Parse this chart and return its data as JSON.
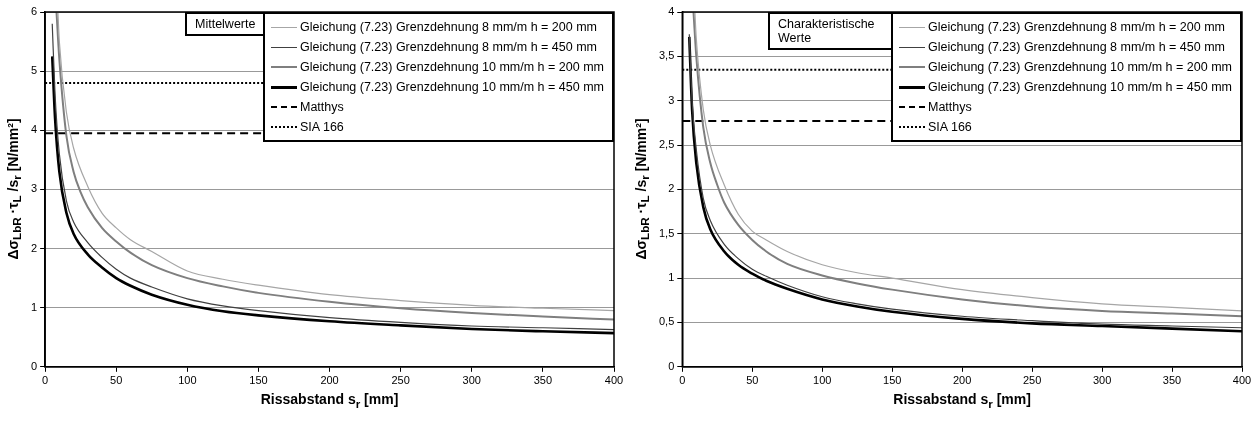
{
  "chart_data": [
    {
      "type": "line",
      "xlabel": "Rissabstand s$_{r}$ [mm]",
      "ylabel": "Δσ$_{LbR}$ ·τ$_{L}$ /s$_{r}$ [N/mm²]",
      "annotations": [
        "Mittelwerte"
      ],
      "xlim": [
        0,
        400
      ],
      "xticks": [
        0,
        50,
        100,
        150,
        200,
        250,
        300,
        350,
        400
      ],
      "ylim": [
        0,
        6
      ],
      "yticks": [
        0,
        1,
        2,
        3,
        4,
        5,
        6
      ],
      "grid": "y",
      "legend": "top right",
      "marker": "none",
      "line_style": "solid",
      "series": [
        {
          "name": "Gleichung (7.23) Grenzdehnung 8 mm/m h = 200 mm",
          "color": "#a6a6a6",
          "x": [
            9,
            10,
            15,
            20,
            30,
            40,
            50,
            60,
            75,
            100,
            125,
            150,
            200,
            250,
            300,
            350,
            400
          ],
          "values": [
            6.0,
            5.5,
            4.3,
            3.7,
            3.05,
            2.6,
            2.35,
            2.15,
            1.95,
            1.62,
            1.48,
            1.38,
            1.22,
            1.12,
            1.04,
            0.99,
            0.95
          ]
        },
        {
          "name": "Gleichung (7.23) Grenzdehnung 8 mm/m h = 450 mm",
          "color": "#404040",
          "x": [
            5,
            7,
            10,
            15,
            20,
            30,
            40,
            50,
            60,
            75,
            100,
            125,
            150,
            200,
            250,
            300,
            350,
            400
          ],
          "values": [
            5.8,
            4.6,
            3.6,
            2.8,
            2.45,
            2.1,
            1.85,
            1.65,
            1.5,
            1.35,
            1.15,
            1.03,
            0.95,
            0.83,
            0.75,
            0.69,
            0.66,
            0.63
          ]
        },
        {
          "name": "Gleichung (7.23) Grenzdehnung 10 mm/m h = 200 mm",
          "color": "#7f7f7f",
          "x": [
            8,
            10,
            15,
            20,
            25,
            30,
            40,
            50,
            60,
            75,
            100,
            125,
            150,
            200,
            250,
            300,
            350,
            400
          ],
          "values": [
            6.0,
            5.2,
            3.9,
            3.3,
            2.95,
            2.7,
            2.35,
            2.12,
            1.93,
            1.72,
            1.5,
            1.36,
            1.25,
            1.1,
            0.99,
            0.91,
            0.85,
            0.8
          ]
        },
        {
          "name": "Gleichung (7.23) Grenzdehnung 10 mm/m h = 450 mm",
          "color": "#000000",
          "x": [
            5,
            7,
            10,
            15,
            20,
            30,
            40,
            50,
            60,
            75,
            100,
            125,
            150,
            200,
            250,
            300,
            350,
            400
          ],
          "values": [
            5.25,
            4.2,
            3.3,
            2.6,
            2.25,
            1.9,
            1.68,
            1.5,
            1.37,
            1.22,
            1.05,
            0.94,
            0.87,
            0.77,
            0.7,
            0.64,
            0.6,
            0.57
          ]
        }
      ],
      "ref_lines": [
        {
          "axis": "y",
          "value": 3.95,
          "label": "Matthys",
          "color": "#000000",
          "line_style": "dashed"
        },
        {
          "axis": "y",
          "value": 4.8,
          "label": "SIA 166",
          "color": "#000000",
          "line_style": "dotted"
        }
      ]
    },
    {
      "type": "line",
      "xlabel": "Rissabstand s$_{r}$ [mm]",
      "ylabel": "Δσ$_{LbR}$ ·τ$_{L}$ /s$_{r}$ [N/mm²]",
      "annotations": [
        "Charakteristische Werte"
      ],
      "xlim": [
        0,
        400
      ],
      "xticks": [
        0,
        50,
        100,
        150,
        200,
        250,
        300,
        350,
        400
      ],
      "ylim": [
        0,
        4
      ],
      "yticks": [
        0,
        {
          "value": 0.5,
          "label": "0,5"
        },
        1,
        {
          "value": 1.5,
          "label": "1,5"
        },
        2,
        {
          "value": 2.5,
          "label": "2,5"
        },
        3,
        {
          "value": 3.5,
          "label": "3,5"
        },
        4
      ],
      "grid": "y",
      "legend": "top right",
      "marker": "none",
      "line_style": "solid",
      "series": [
        {
          "name": "Gleichung (7.23) Grenzdehnung 8 mm/m h = 200 mm",
          "color": "#a6a6a6",
          "x": [
            9,
            10,
            15,
            20,
            30,
            40,
            50,
            60,
            75,
            100,
            125,
            150,
            200,
            250,
            300,
            350,
            400
          ],
          "values": [
            4.0,
            3.7,
            2.9,
            2.5,
            2.05,
            1.72,
            1.53,
            1.43,
            1.3,
            1.15,
            1.06,
            1.0,
            0.87,
            0.78,
            0.71,
            0.67,
            0.63
          ]
        },
        {
          "name": "Gleichung (7.23) Grenzdehnung 8 mm/m h = 450 mm",
          "color": "#404040",
          "x": [
            5,
            7,
            10,
            15,
            20,
            30,
            40,
            50,
            60,
            75,
            100,
            125,
            150,
            200,
            250,
            300,
            350,
            400
          ],
          "values": [
            3.75,
            3.0,
            2.45,
            1.9,
            1.65,
            1.38,
            1.22,
            1.1,
            1.02,
            0.92,
            0.79,
            0.71,
            0.65,
            0.57,
            0.52,
            0.48,
            0.46,
            0.44
          ]
        },
        {
          "name": "Gleichung (7.23) Grenzdehnung 10 mm/m h = 200 mm",
          "color": "#7f7f7f",
          "x": [
            8,
            10,
            15,
            20,
            25,
            30,
            40,
            50,
            60,
            75,
            100,
            125,
            150,
            200,
            250,
            300,
            350,
            400
          ],
          "values": [
            4.0,
            3.5,
            2.7,
            2.3,
            2.05,
            1.85,
            1.6,
            1.43,
            1.3,
            1.16,
            1.03,
            0.94,
            0.87,
            0.76,
            0.68,
            0.63,
            0.6,
            0.57
          ]
        },
        {
          "name": "Gleichung (7.23) Grenzdehnung 10 mm/m h = 450 mm",
          "color": "#000000",
          "x": [
            5,
            7,
            10,
            15,
            20,
            30,
            40,
            50,
            60,
            75,
            100,
            125,
            150,
            200,
            250,
            300,
            350,
            400
          ],
          "values": [
            3.72,
            2.9,
            2.3,
            1.8,
            1.55,
            1.3,
            1.15,
            1.05,
            0.97,
            0.88,
            0.76,
            0.68,
            0.62,
            0.54,
            0.49,
            0.46,
            0.43,
            0.4
          ]
        }
      ],
      "ref_lines": [
        {
          "axis": "y",
          "value": 2.77,
          "label": "Matthys",
          "color": "#000000",
          "line_style": "dashed"
        },
        {
          "axis": "y",
          "value": 3.35,
          "label": "SIA 166",
          "color": "#000000",
          "line_style": "dotted"
        }
      ]
    }
  ]
}
